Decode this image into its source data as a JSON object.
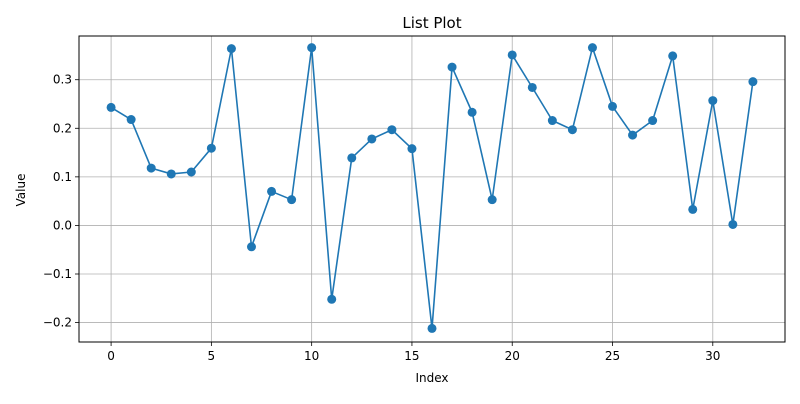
{
  "chart_data": {
    "type": "line",
    "title": "List Plot",
    "xlabel": "Index",
    "ylabel": "Value",
    "xlim": [
      -1.6,
      33.6
    ],
    "ylim": [
      -0.24,
      0.39
    ],
    "xticks": [
      0,
      5,
      10,
      15,
      20,
      25,
      30
    ],
    "yticks": [
      -0.2,
      -0.1,
      0.0,
      0.1,
      0.2,
      0.3
    ],
    "ytick_labels": [
      "−0.2",
      "−0.1",
      "0.0",
      "0.1",
      "0.2",
      "0.3"
    ],
    "grid": true,
    "marker": "circle",
    "series": [
      {
        "color": "#1f77b4",
        "x": [
          0,
          1,
          2,
          3,
          4,
          5,
          6,
          7,
          8,
          9,
          10,
          11,
          12,
          13,
          14,
          15,
          16,
          17,
          18,
          19,
          20,
          21,
          22,
          23,
          24,
          25,
          26,
          27,
          28,
          29,
          30,
          31,
          32
        ],
        "values": [
          0.243,
          0.218,
          0.118,
          0.106,
          0.11,
          0.159,
          0.364,
          -0.044,
          0.07,
          0.053,
          0.366,
          -0.152,
          0.139,
          0.178,
          0.197,
          0.158,
          -0.212,
          0.326,
          0.233,
          0.053,
          0.351,
          0.284,
          0.216,
          0.197,
          0.366,
          0.245,
          0.186,
          0.216,
          0.349,
          0.033,
          0.257,
          0.002,
          0.296
        ]
      }
    ]
  }
}
